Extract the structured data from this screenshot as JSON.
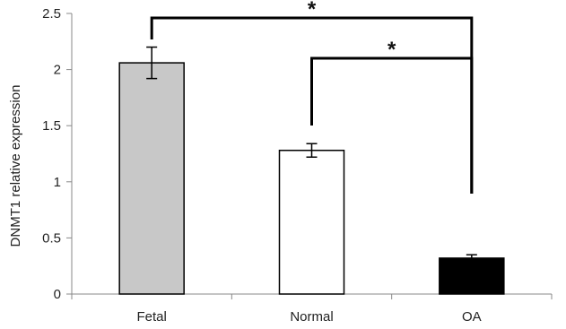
{
  "chart_data": {
    "type": "bar",
    "title": "",
    "xlabel": "",
    "ylabel": "DNMT1 relative expression",
    "ylim": [
      0,
      2.5
    ],
    "yticks": [
      "0",
      "0.5",
      "1",
      "1.5",
      "2",
      "2.5"
    ],
    "categories": [
      "Fetal",
      "Normal",
      "OA"
    ],
    "values": [
      2.06,
      1.28,
      0.32
    ],
    "errors": [
      0.14,
      0.06,
      0.03
    ],
    "bar_colors": [
      "#c8c8c8",
      "#ffffff",
      "#000000"
    ],
    "grid": false,
    "legend": "none",
    "significance": [
      {
        "from": "Fetal",
        "to": "OA",
        "label": "*"
      },
      {
        "from": "Normal",
        "to": "OA",
        "label": "*"
      }
    ]
  }
}
